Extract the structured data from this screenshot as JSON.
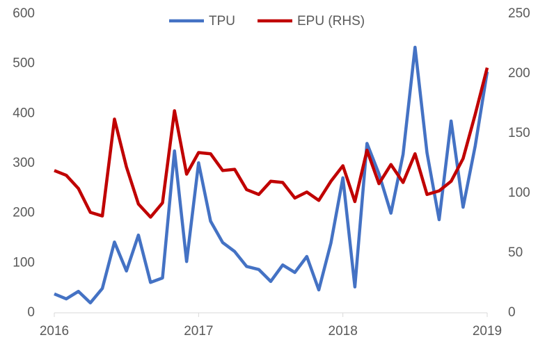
{
  "chart_data": {
    "type": "line",
    "x": [
      0,
      0.083,
      0.167,
      0.25,
      0.333,
      0.417,
      0.5,
      0.583,
      0.667,
      0.75,
      0.833,
      0.917,
      1,
      1.083,
      1.167,
      1.25,
      1.333,
      1.417,
      1.5,
      1.583,
      1.667,
      1.75,
      1.833,
      1.917,
      2,
      2.083,
      2.167,
      2.25,
      2.333,
      2.417,
      2.5,
      2.583,
      2.667,
      2.75,
      2.833,
      2.917,
      3
    ],
    "xlim": [
      0,
      3
    ],
    "xticks": [
      {
        "value": 0,
        "label": "2016"
      },
      {
        "value": 1,
        "label": "2017"
      },
      {
        "value": 2,
        "label": "2018"
      },
      {
        "value": 3,
        "label": "2019"
      }
    ],
    "ylim": [
      0,
      600
    ],
    "yticks": [
      0,
      100,
      200,
      300,
      400,
      500,
      600
    ],
    "y2lim": [
      0,
      250
    ],
    "y2ticks": [
      0,
      50,
      100,
      150,
      200,
      250
    ],
    "legend": "top",
    "series": [
      {
        "name": "TPU",
        "color": "#4472c4",
        "values": [
          38,
          28,
          43,
          20,
          49,
          142,
          84,
          156,
          61,
          70,
          325,
          103,
          301,
          184,
          141,
          123,
          93,
          87,
          63,
          96,
          81,
          113,
          46,
          140,
          271,
          52,
          340,
          279,
          200,
          318,
          533,
          321,
          187,
          385,
          212,
          335,
          484
        ]
      },
      {
        "name": "EPU (RHS)",
        "color": "#c00000",
        "axis": "y2",
        "values": [
          119,
          115,
          104,
          84,
          81,
          162,
          122,
          91,
          80,
          92,
          169,
          116,
          134,
          133,
          119,
          120,
          103,
          99,
          110,
          109,
          96,
          101,
          94,
          110,
          123,
          93,
          136,
          108,
          124,
          109,
          133,
          99,
          102,
          110,
          129,
          166,
          205
        ]
      }
    ]
  }
}
